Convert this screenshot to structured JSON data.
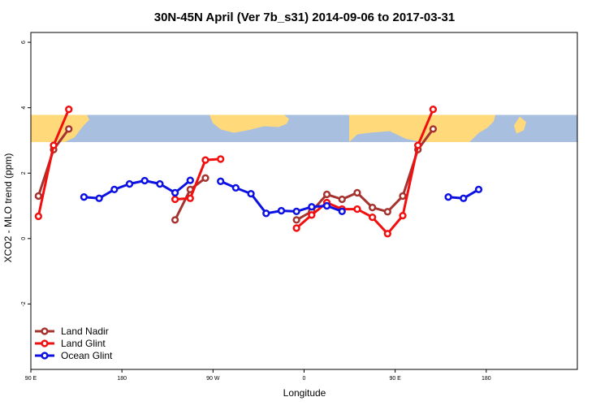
{
  "chart_data": {
    "type": "line",
    "title": "30N-45N April (Ver 7b_s31)   2014-09-06 to 2017-03-31",
    "xlabel": "Longitude",
    "ylabel": "XCO2 - MLO trend (ppm)",
    "xlim": [
      -180,
      360
    ],
    "ylim": [
      -4,
      6.3
    ],
    "x_ticks": [
      {
        "value": -180,
        "label": "90 E"
      },
      {
        "value": -90,
        "label": "180"
      },
      {
        "value": 0,
        "label": "90 W"
      },
      {
        "value": 90,
        "label": "0"
      },
      {
        "value": 180,
        "label": "90 E"
      },
      {
        "value": 270,
        "label": "180"
      }
    ],
    "y_ticks": [
      {
        "value": -2,
        "label": "-2"
      },
      {
        "value": 0,
        "label": "0"
      },
      {
        "value": 2,
        "label": "2"
      },
      {
        "value": 4,
        "label": "4"
      },
      {
        "value": 6,
        "label": "6"
      }
    ],
    "map_band": {
      "y_top": 3.78,
      "y_bottom": 2.95,
      "ocean_color": "#a9bfdf",
      "land_color": "#ffd97a"
    },
    "legend_position": "bottom-left",
    "series": [
      {
        "name": "Land Nadir",
        "color": "#a5332f",
        "segments": [
          [
            [
              -172.5,
              1.3
            ],
            [
              -157.5,
              2.72
            ],
            [
              -142.5,
              3.35
            ]
          ],
          [
            [
              -37.5,
              0.57
            ],
            [
              -22.5,
              1.5
            ],
            [
              -7.5,
              1.85
            ]
          ],
          [
            [
              82.5,
              0.57
            ],
            [
              97.5,
              0.83
            ],
            [
              112.5,
              1.35
            ],
            [
              127.5,
              1.2
            ],
            [
              142.5,
              1.4
            ],
            [
              157.5,
              0.95
            ],
            [
              172.5,
              0.82
            ],
            [
              187.5,
              1.3
            ],
            [
              202.5,
              2.72
            ],
            [
              217.5,
              3.35
            ]
          ]
        ]
      },
      {
        "name": "Land Glint",
        "color": "#f20f0f",
        "segments": [
          [
            [
              -172.5,
              0.68
            ],
            [
              -157.5,
              2.85
            ],
            [
              -142.5,
              3.95
            ]
          ],
          [
            [
              -37.5,
              1.2
            ],
            [
              -22.5,
              1.23
            ],
            [
              -7.5,
              2.4
            ],
            [
              7.5,
              2.43
            ]
          ],
          [
            [
              82.5,
              0.32
            ],
            [
              97.5,
              0.72
            ],
            [
              112.5,
              1.1
            ],
            [
              127.5,
              0.9
            ],
            [
              142.5,
              0.9
            ],
            [
              157.5,
              0.65
            ],
            [
              172.5,
              0.15
            ],
            [
              187.5,
              0.7
            ],
            [
              202.5,
              2.85
            ],
            [
              217.5,
              3.95
            ]
          ]
        ]
      },
      {
        "name": "Ocean Glint",
        "color": "#0d11e1",
        "segments": [
          [
            [
              -127.5,
              1.27
            ],
            [
              -112.5,
              1.23
            ],
            [
              -97.5,
              1.5
            ],
            [
              -82.5,
              1.67
            ],
            [
              -67.5,
              1.77
            ],
            [
              -52.5,
              1.67
            ],
            [
              -37.5,
              1.4
            ],
            [
              -22.5,
              1.78
            ]
          ],
          [
            [
              7.5,
              1.75
            ],
            [
              22.5,
              1.55
            ],
            [
              37.5,
              1.37
            ],
            [
              52.5,
              0.77
            ],
            [
              67.5,
              0.85
            ],
            [
              82.5,
              0.83
            ],
            [
              97.5,
              0.97
            ],
            [
              112.5,
              1.0
            ],
            [
              127.5,
              0.83
            ]
          ],
          [
            [
              232.5,
              1.27
            ],
            [
              247.5,
              1.23
            ],
            [
              262.5,
              1.5
            ]
          ]
        ]
      }
    ]
  }
}
